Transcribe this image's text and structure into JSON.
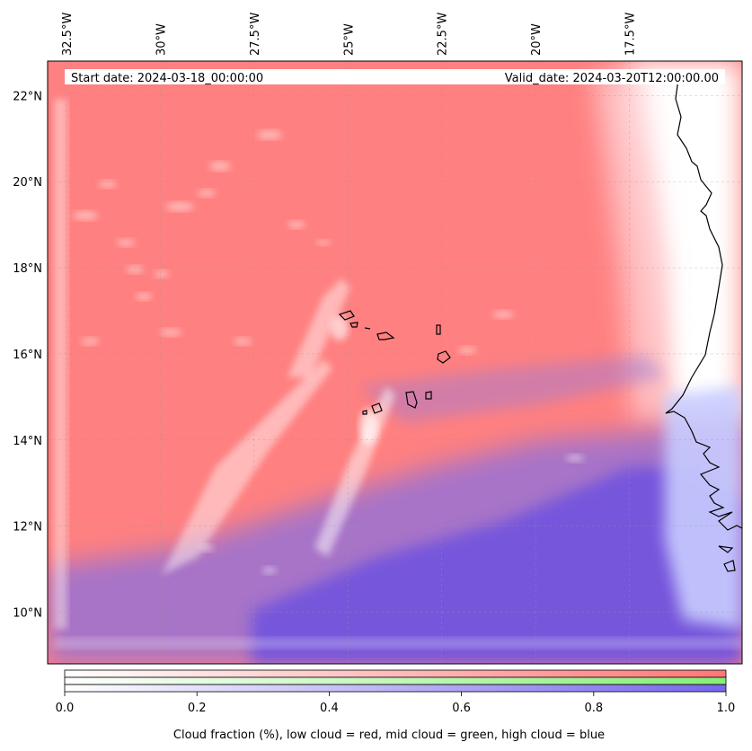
{
  "map": {
    "projection_extent": {
      "lon_min": -33.0,
      "lon_max": -14.5,
      "lat_min": 8.8,
      "lat_max": 22.8
    },
    "start_date": "Start date: 2024-03-18_00:00:00",
    "valid_date": "Valid_date: 2024-03-20T12:00:00.00",
    "longitude_ticks": [
      {
        "value": -32.5,
        "label": "32.5°W"
      },
      {
        "value": -30.0,
        "label": "30°W"
      },
      {
        "value": -27.5,
        "label": "27.5°W"
      },
      {
        "value": -25.0,
        "label": "25°W"
      },
      {
        "value": -22.5,
        "label": "22.5°W"
      },
      {
        "value": -20.0,
        "label": "20°W"
      },
      {
        "value": -17.5,
        "label": "17.5°W"
      }
    ],
    "latitude_ticks": [
      {
        "value": 22,
        "label": "22°N"
      },
      {
        "value": 20,
        "label": "20°N"
      },
      {
        "value": 18,
        "label": "18°N"
      },
      {
        "value": 16,
        "label": "16°N"
      },
      {
        "value": 14,
        "label": "14°N"
      },
      {
        "value": 12,
        "label": "12°N"
      },
      {
        "value": 10,
        "label": "10°N"
      }
    ],
    "layers": {
      "low_cloud_color": "#ff7f7f",
      "mid_cloud_color": "#7fef7f",
      "high_cloud_color": "#7f7fef"
    }
  },
  "colorbar": {
    "min": 0.0,
    "max": 1.0,
    "ticks": [
      {
        "value": 0.0,
        "label": "0.0"
      },
      {
        "value": 0.2,
        "label": "0.2"
      },
      {
        "value": 0.4,
        "label": "0.4"
      },
      {
        "value": 0.6,
        "label": "0.6"
      },
      {
        "value": 0.8,
        "label": "0.8"
      },
      {
        "value": 1.0,
        "label": "1.0"
      }
    ],
    "bars": [
      {
        "name": "low",
        "color": "#ff7777"
      },
      {
        "name": "mid",
        "color": "#88ee77"
      },
      {
        "name": "high",
        "color": "#7766ee"
      }
    ],
    "label": "Cloud fraction (%), low cloud = red, mid cloud = green, high cloud = blue"
  }
}
